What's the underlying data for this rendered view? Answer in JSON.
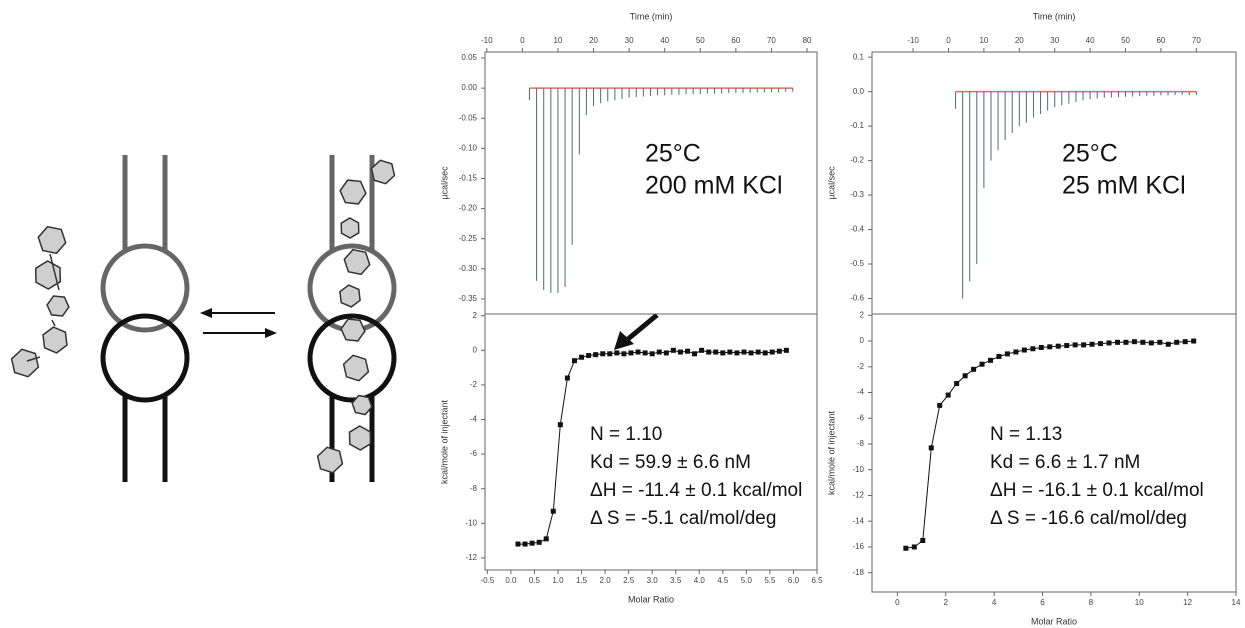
{
  "chart_data": [
    {
      "type": "spike",
      "x_axis_position": "top",
      "x_label": "Time (min)",
      "y_label": "µcal/sec",
      "xlim": [
        -10.5,
        82.8
      ],
      "xticks": [
        -10,
        0,
        10,
        20,
        30,
        40,
        50,
        60,
        70,
        80
      ],
      "ylim": [
        -0.375,
        0.06
      ],
      "yticks": [
        0.05,
        {
          "value": 0,
          "label": "0.00"
        },
        -0.05,
        {
          "value": -0.1,
          "label": "-0.10"
        },
        -0.15,
        {
          "value": -0.2,
          "label": "-0.20"
        },
        -0.25,
        {
          "value": -0.3,
          "label": "-0.30"
        },
        -0.35
      ],
      "color": "#5a6475",
      "baseline_color": "#d9705a",
      "x": [
        2,
        4,
        6,
        8,
        10,
        12,
        14,
        16,
        18,
        20,
        22,
        24,
        26,
        28,
        30,
        32,
        34,
        36,
        38,
        40,
        42,
        44,
        46,
        48,
        50,
        52,
        54,
        56,
        58,
        60,
        62,
        64,
        66,
        68,
        70,
        72,
        74,
        76
      ],
      "values": [
        -0.02,
        -0.32,
        -0.335,
        -0.34,
        -0.34,
        -0.33,
        -0.26,
        -0.11,
        -0.045,
        -0.03,
        -0.025,
        -0.022,
        -0.02,
        -0.018,
        -0.016,
        -0.015,
        -0.014,
        -0.013,
        -0.012,
        -0.012,
        -0.011,
        -0.011,
        -0.01,
        -0.01,
        -0.01,
        -0.009,
        -0.009,
        -0.009,
        -0.008,
        -0.008,
        -0.008,
        -0.008,
        -0.007,
        -0.007,
        -0.007,
        -0.007,
        -0.006,
        -0.006
      ],
      "annotations": [
        "25°C",
        "200 mM KCl"
      ]
    },
    {
      "type": "scatter",
      "x_axis_position": "bottom",
      "x_label": "Molar Ratio",
      "y_label": "kcal/mole of injectant",
      "xlim": [
        -0.55,
        6.5
      ],
      "xticks": [
        -0.5,
        {
          "value": 0,
          "label": "0.0"
        },
        0.5,
        {
          "value": 1,
          "label": "1.0"
        },
        1.5,
        {
          "value": 2,
          "label": "2.0"
        },
        2.5,
        {
          "value": 3,
          "label": "3.0"
        },
        3.5,
        {
          "value": 4,
          "label": "4.0"
        },
        4.5,
        {
          "value": 5,
          "label": "5.0"
        },
        5.5,
        {
          "value": 6,
          "label": "6.0"
        },
        6.5
      ],
      "ylim": [
        -12.7,
        2.1
      ],
      "yticks": [
        2,
        0,
        -2,
        -4,
        -6,
        -8,
        -10,
        -12
      ],
      "color": "#111111",
      "x": [
        0.15,
        0.3,
        0.45,
        0.6,
        0.75,
        0.9,
        1.05,
        1.2,
        1.35,
        1.5,
        1.65,
        1.8,
        1.95,
        2.1,
        2.25,
        2.4,
        2.55,
        2.7,
        2.85,
        3.0,
        3.15,
        3.3,
        3.45,
        3.6,
        3.75,
        3.9,
        4.05,
        4.2,
        4.35,
        4.5,
        4.65,
        4.8,
        4.95,
        5.1,
        5.25,
        5.4,
        5.55,
        5.7,
        5.85
      ],
      "values": [
        -11.2,
        -11.2,
        -11.15,
        -11.1,
        -10.9,
        -9.3,
        -4.3,
        -1.6,
        -0.6,
        -0.4,
        -0.3,
        -0.25,
        -0.2,
        -0.2,
        -0.15,
        -0.2,
        -0.15,
        -0.1,
        -0.15,
        -0.2,
        -0.1,
        -0.15,
        0.0,
        -0.1,
        -0.05,
        -0.2,
        0.0,
        -0.1,
        -0.1,
        -0.15,
        -0.1,
        -0.15,
        -0.1,
        -0.15,
        -0.1,
        -0.15,
        -0.1,
        -0.05,
        0.0
      ],
      "annotations": [
        "N = 1.10",
        "Kd = 59.9 ± 6.6 nM",
        "ΔH = -11.4 ± 0.1 kcal/mol",
        "Δ S = -5.1 cal/mol/deg"
      ]
    },
    {
      "type": "spike",
      "x_axis_position": "top",
      "x_label": "Time (min)",
      "y_label": "µcal/sec",
      "xlim": [
        -21.6,
        81.2
      ],
      "xticks": [
        -10,
        0,
        10,
        20,
        30,
        40,
        50,
        60,
        70
      ],
      "ylim": [
        -0.645,
        0.115
      ],
      "yticks": [
        0.1,
        {
          "value": 0,
          "label": "0.0"
        },
        -0.1,
        -0.2,
        -0.3,
        -0.4,
        -0.5,
        -0.6
      ],
      "color": "#5a6475",
      "baseline_color": "#d9705a",
      "x": [
        2,
        4,
        6,
        8,
        10,
        12,
        14,
        16,
        18,
        20,
        22,
        24,
        26,
        28,
        30,
        32,
        34,
        36,
        38,
        40,
        42,
        44,
        46,
        48,
        50,
        52,
        54,
        56,
        58,
        60,
        62,
        64,
        66,
        68,
        70
      ],
      "values": [
        -0.05,
        -0.6,
        -0.55,
        -0.5,
        -0.28,
        -0.2,
        -0.17,
        -0.14,
        -0.12,
        -0.1,
        -0.09,
        -0.075,
        -0.065,
        -0.055,
        -0.045,
        -0.04,
        -0.035,
        -0.03,
        -0.025,
        -0.022,
        -0.02,
        -0.018,
        -0.017,
        -0.016,
        -0.015,
        -0.014,
        -0.013,
        -0.012,
        -0.012,
        -0.011,
        -0.011,
        -0.01,
        -0.01,
        -0.01,
        -0.01
      ],
      "annotations": [
        "25°C",
        "25 mM KCl"
      ]
    },
    {
      "type": "scatter",
      "x_axis_position": "bottom",
      "x_label": "Molar Ratio",
      "y_label": "kcal/mole of injectant",
      "xlim": [
        -1.05,
        14
      ],
      "xticks": [
        0,
        2,
        4,
        6,
        8,
        10,
        12,
        14
      ],
      "ylim": [
        -19.5,
        2.1
      ],
      "yticks": [
        2,
        0,
        -2,
        -4,
        -6,
        -8,
        -10,
        -12,
        -14,
        -16,
        -18
      ],
      "color": "#111111",
      "x": [
        0.35,
        0.7,
        1.05,
        1.4,
        1.75,
        2.1,
        2.45,
        2.8,
        3.15,
        3.5,
        3.85,
        4.2,
        4.55,
        4.9,
        5.25,
        5.6,
        5.95,
        6.3,
        6.65,
        7.0,
        7.35,
        7.7,
        8.05,
        8.4,
        8.75,
        9.1,
        9.45,
        9.8,
        10.15,
        10.5,
        10.85,
        11.2,
        11.55,
        11.9,
        12.25
      ],
      "values": [
        -16.1,
        -16.0,
        -15.5,
        -8.3,
        -5.0,
        -4.2,
        -3.3,
        -2.7,
        -2.2,
        -1.8,
        -1.5,
        -1.2,
        -1.0,
        -0.85,
        -0.7,
        -0.6,
        -0.5,
        -0.45,
        -0.4,
        -0.35,
        -0.3,
        -0.3,
        -0.25,
        -0.2,
        -0.15,
        -0.1,
        -0.1,
        -0.05,
        -0.1,
        -0.15,
        -0.1,
        -0.25,
        -0.1,
        -0.05,
        0.0
      ],
      "annotations": [
        "N = 1.13",
        "Kd = 6.6 ± 1.7 nM",
        "ΔH = -16.1 ± 0.1 kcal/mol",
        "Δ S = -16.6 cal/mol/deg"
      ]
    }
  ]
}
